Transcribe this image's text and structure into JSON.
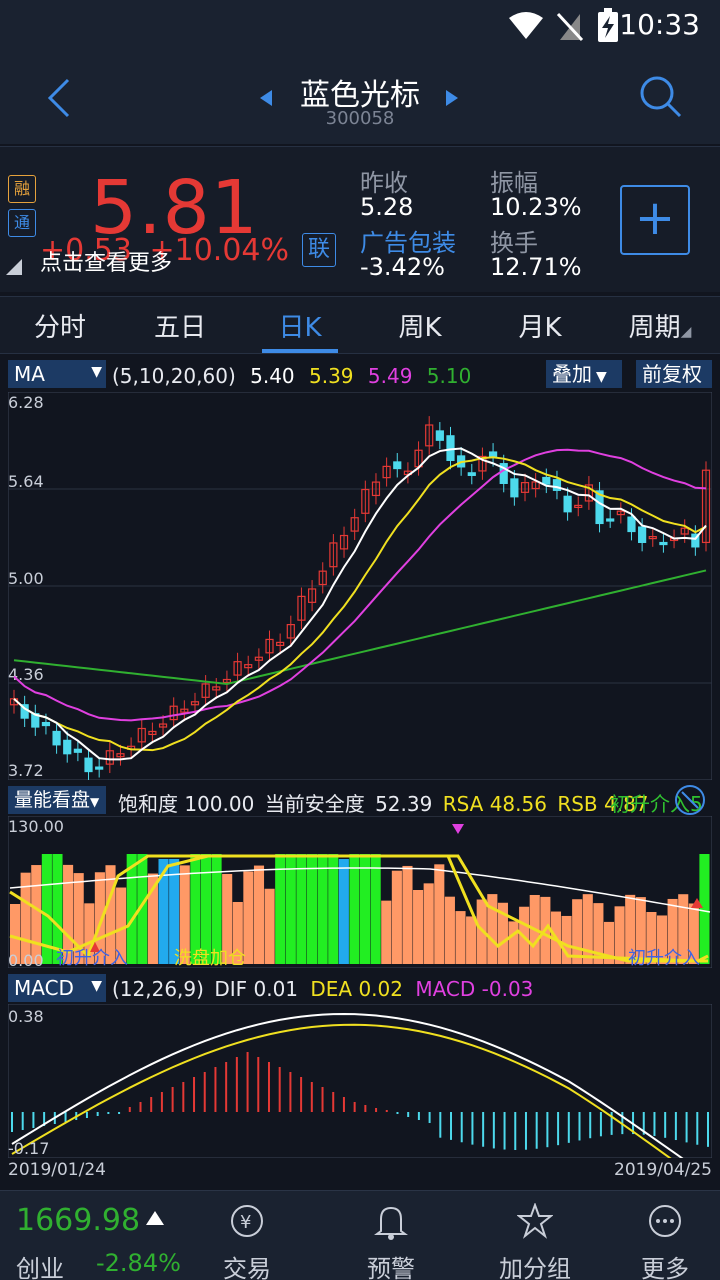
{
  "status": {
    "time": "10:33"
  },
  "header": {
    "title": "蓝色光标",
    "code": "300058"
  },
  "quote": {
    "badge_rong": "融",
    "badge_tong": "通",
    "price": "5.81",
    "change": "+0.53",
    "change_pct": "+10.04%",
    "hint": "点击查看更多",
    "lian_label": "联",
    "prev_close_label": "昨收",
    "prev_close": "5.28",
    "sector_label": "广告包装",
    "sector_change": "-3.42%",
    "amplitude_label": "振幅",
    "amplitude": "10.23%",
    "turnover_label": "换手",
    "turnover": "12.71%",
    "plus": "+"
  },
  "tabs": [
    "分时",
    "五日",
    "日K",
    "周K",
    "月K",
    "周期"
  ],
  "active_tab": 2,
  "ma": {
    "select": "MA",
    "params": "(5,10,20,60)",
    "ma5": "5.40",
    "ma10": "5.39",
    "ma20": "5.49",
    "ma60": "5.10",
    "overlay": "叠加",
    "adjust": "前复权",
    "yticks": [
      "6.28",
      "5.64",
      "5.00",
      "4.36",
      "3.72"
    ]
  },
  "volume_panel": {
    "select": "量能看盘",
    "saturation_label": "饱和度",
    "saturation": "100.00",
    "safety_label": "当前安全度",
    "safety": "52.39",
    "rsa_label": "RSA",
    "rsa": "48.56",
    "rsb_label": "RSB",
    "rsb": "4.87",
    "signal_label": "初升介入",
    "signal_val": "5",
    "ytop": "130.00",
    "ybottom": "0.00",
    "marker_entry_left": "初升介入",
    "marker_wash": "洗盘加仓",
    "marker_entry_right": "初升介入"
  },
  "macd": {
    "select": "MACD",
    "params": "(12,26,9)",
    "dif_label": "DIF",
    "dif": "0.01",
    "dea_label": "DEA",
    "dea": "0.02",
    "macd_label": "MACD",
    "macd_val": "-0.03",
    "ytop": "0.38",
    "ybottom": "-0.17",
    "date_start": "2019/01/24",
    "date_end": "2019/04/25"
  },
  "bottom": {
    "index_value": "1669.98",
    "index_name": "创业",
    "index_change": "-2.84%",
    "nav": [
      "交易",
      "预警",
      "加分组",
      "更多"
    ]
  },
  "colors": {
    "up": "#e53935",
    "down": "#4dd9ec",
    "accent": "#3e8be6",
    "ma5": "#ffffff",
    "ma10": "#f0e020",
    "ma20": "#e040e0",
    "ma60": "#30b030"
  }
}
